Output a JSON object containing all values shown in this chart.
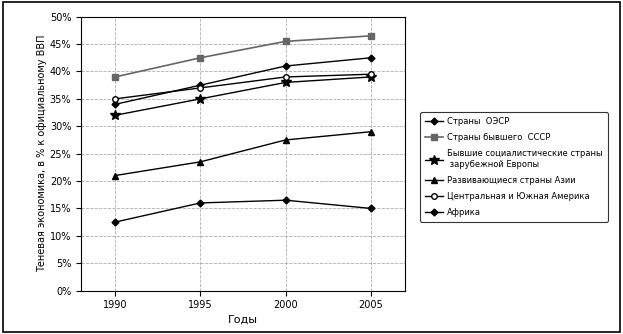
{
  "years": [
    1990,
    1995,
    2000,
    2005
  ],
  "series": [
    {
      "label": "Страны  ОЭСР",
      "values": [
        34,
        37.5,
        41,
        42.5
      ],
      "color": "#000000",
      "marker": "D",
      "markersize": 3.5,
      "linewidth": 1.0
    },
    {
      "label": "Страны бывшего  СССР",
      "values": [
        39,
        42.5,
        45.5,
        46.5
      ],
      "color": "#666666",
      "marker": "s",
      "markersize": 4.5,
      "linewidth": 1.2
    },
    {
      "label": "Бывшие социалистические страны\n зарубежной Европы",
      "values": [
        32,
        35,
        38,
        39
      ],
      "color": "#000000",
      "marker": "*",
      "markersize": 7,
      "linewidth": 1.0
    },
    {
      "label": "Развивающиеся страны Азии",
      "values": [
        21,
        23.5,
        27.5,
        29
      ],
      "color": "#000000",
      "marker": "^",
      "markersize": 4,
      "linewidth": 1.0
    },
    {
      "label": "Центральная и Южная Америка",
      "values": [
        35,
        37,
        39,
        39.5
      ],
      "color": "#000000",
      "marker": "o",
      "markersize": 4,
      "linewidth": 1.0,
      "markerfacecolor": "white"
    },
    {
      "label": "Африка",
      "values": [
        12.5,
        16,
        16.5,
        15
      ],
      "color": "#000000",
      "marker": "D",
      "markersize": 3.5,
      "linewidth": 1.0
    }
  ],
  "ylabel": "Теневая экономика, в % к официальному ВВП",
  "xlabel": "Годы",
  "ylim": [
    0,
    50
  ],
  "yticks": [
    0,
    5,
    10,
    15,
    20,
    25,
    30,
    35,
    40,
    45,
    50
  ],
  "bg_color": "#ffffff",
  "grid_color": "#999999"
}
